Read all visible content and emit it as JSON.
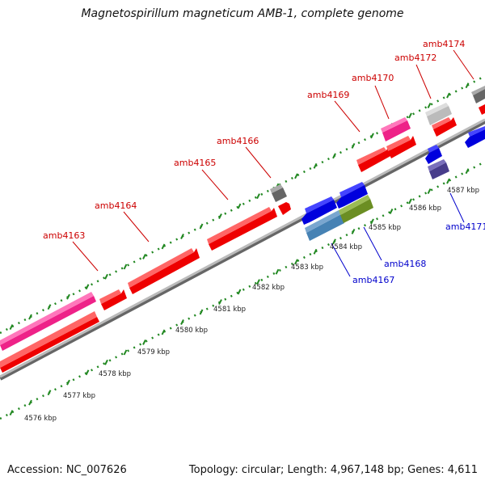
{
  "title": "Magnetospirillum magneticum AMB-1, complete genome",
  "footer": {
    "accession": "Accession: NC_007626",
    "summary": "Topology: circular; Length: 4,967,148 bp; Genes: 4,611"
  },
  "colors": {
    "forward_label": "#cc0000",
    "reverse_label": "#0000cc",
    "dots": "#228822",
    "backbone": "#888888"
  },
  "ruler_labels": [
    "4576 kbp",
    "4577 kbp",
    "4578 kbp",
    "4579 kbp",
    "4580 kbp",
    "4581 kbp",
    "4582 kbp",
    "4583 kbp",
    "4584 kbp",
    "4585 kbp",
    "4586 kbp",
    "4587 kbp"
  ],
  "forward_gene_labels": [
    "amb4163",
    "amb4164",
    "amb4165",
    "amb4166",
    "amb4169",
    "amb4170",
    "amb4172",
    "amb4174"
  ],
  "reverse_gene_labels": [
    "amb4167",
    "amb4168",
    "amb4171"
  ]
}
